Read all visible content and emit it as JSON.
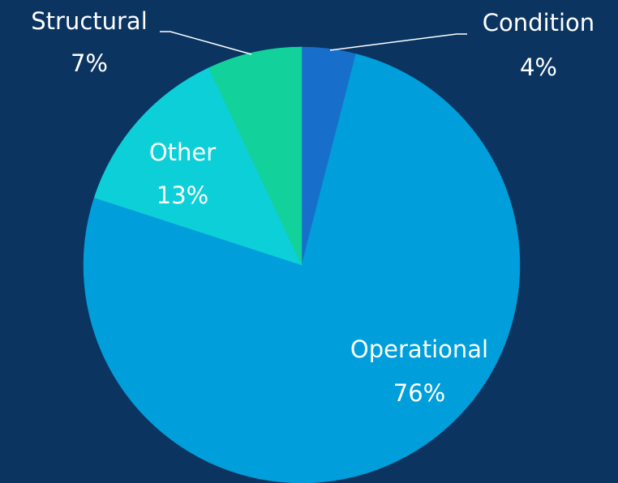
{
  "chart_data": {
    "type": "pie",
    "categories": [
      "Condition",
      "Operational",
      "Other",
      "Structural"
    ],
    "values": [
      4,
      76,
      13,
      7
    ],
    "value_labels": [
      "4%",
      "76%",
      "13%",
      "7%"
    ],
    "colors": [
      "#176fcb",
      "#009fdb",
      "#0dcfd8",
      "#13d19b"
    ]
  }
}
